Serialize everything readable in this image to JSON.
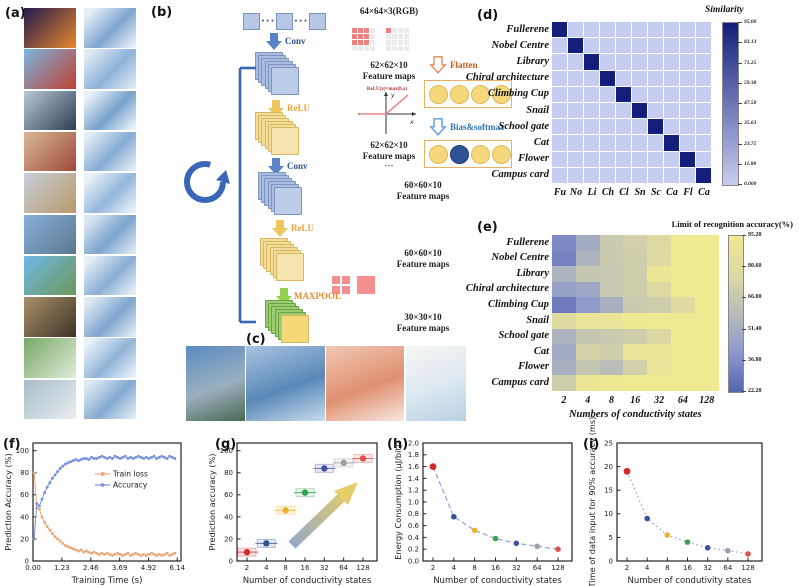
{
  "panels": {
    "a": {
      "label": "(a)",
      "items": [
        {
          "name": "fullerene",
          "photo": [
            "#221a4e",
            "#e8862a"
          ],
          "processed": [
            "#e6eff8",
            "#7fa6cf"
          ]
        },
        {
          "name": "nobel-centre",
          "photo": [
            "#7ab4e0",
            "#c04030"
          ],
          "processed": [
            "#dfeaf5",
            "#8db2d8"
          ]
        },
        {
          "name": "library",
          "photo": [
            "#b8c8d8",
            "#2e3e52"
          ],
          "processed": [
            "#e9f1f8",
            "#77a2cc"
          ]
        },
        {
          "name": "chiral-architecture",
          "photo": [
            "#d8b898",
            "#a04838"
          ],
          "processed": [
            "#e2ecf6",
            "#86abd2"
          ]
        },
        {
          "name": "climbing-cup",
          "photo": [
            "#c8d0dc",
            "#b89868"
          ],
          "processed": [
            "#eaf2f9",
            "#92b6da"
          ]
        },
        {
          "name": "snail",
          "photo": [
            "#88b0d8",
            "#5a7890"
          ],
          "processed": [
            "#dce8f4",
            "#7ca4cd"
          ]
        },
        {
          "name": "school-gate",
          "photo": [
            "#70b8e8",
            "#6a9858"
          ],
          "processed": [
            "#e7f0f8",
            "#89aed4"
          ]
        },
        {
          "name": "cat",
          "photo": [
            "#a89068",
            "#403428"
          ],
          "processed": [
            "#e0eaf4",
            "#7ea6ce"
          ]
        },
        {
          "name": "flower",
          "photo": [
            "#78a868",
            "#e0ecd8"
          ],
          "processed": [
            "#e8f1f9",
            "#90b4d8"
          ]
        },
        {
          "name": "campus-card",
          "photo": [
            "#a8bcc8",
            "#e8eef0"
          ],
          "processed": [
            "#dde9f3",
            "#84aad1"
          ]
        }
      ]
    },
    "b": {
      "label": "(b)",
      "dots": "···",
      "conv_label": "Conv",
      "relu_label": "ReLU",
      "maxpool_label": "MAXPOOL",
      "flatten_label": "Flatten",
      "bias_label": "Bias&softmax",
      "input_size": "64×64×3(RGB)",
      "fm62": "62×62×10",
      "fm60": "60×60×10",
      "fm30": "30×30×10",
      "feature_maps": "Feature maps",
      "relu_formula": "ReLU(x)=max(0,x)",
      "axis_x": "x",
      "axis_y": "y"
    },
    "c": {
      "label": "(c)",
      "tiles": [
        {
          "name": "snail-photo",
          "colors": [
            "#5a8ac0",
            "#9ab0c0",
            "#4a6850"
          ]
        },
        {
          "name": "feature-blue",
          "colors": [
            "#a8c4e0",
            "#5a88b8",
            "#c8dcec"
          ]
        },
        {
          "name": "feature-red",
          "colors": [
            "#f0c8b4",
            "#e09070",
            "#f8e8e0"
          ]
        },
        {
          "name": "feature-white",
          "colors": [
            "#f6f6f4",
            "#dce8f0",
            "#b8d0e4"
          ]
        }
      ]
    },
    "d": {
      "label": "(d)"
    },
    "e": {
      "label": "(e)"
    }
  },
  "chart_data": [
    {
      "id": "d",
      "type": "heatmap",
      "title": "",
      "rows": [
        "Fullerene",
        "Nobel Centre",
        "Library",
        "Chiral architecture",
        "Climbing Cup",
        "Snail",
        "School gate",
        "Cat",
        "Flower",
        "Campus card"
      ],
      "cols": [
        "Fu",
        "No",
        "Li",
        "Ch",
        "Cl",
        "Sn",
        "Sc",
        "Ca",
        "Fl",
        "Ca"
      ],
      "diag_value": 95,
      "offdiag_value": 8,
      "colors": {
        "low": "#c7cdf0",
        "high": "#141f7b"
      },
      "colorbar": {
        "title": "Similarity",
        "ticks": [
          "95.00",
          "83.13",
          "71.25",
          "59.38",
          "47.50",
          "35.63",
          "23.75",
          "11.88",
          "0.000"
        ]
      }
    },
    {
      "id": "e",
      "type": "heatmap",
      "rows": [
        "Fullerene",
        "Nobel Centre",
        "Library",
        "Chiral architecture",
        "Climbing Cup",
        "Snail",
        "School gate",
        "Cat",
        "Flower",
        "Campus card"
      ],
      "cols": [
        "2",
        "4",
        "8",
        "16",
        "32",
        "64",
        "128"
      ],
      "xlabel": "Numbers of conductivity states",
      "values": [
        [
          35,
          50,
          68,
          72,
          78,
          94,
          94
        ],
        [
          33,
          55,
          68,
          70,
          80,
          94,
          94
        ],
        [
          55,
          66,
          67,
          70,
          91,
          94,
          94
        ],
        [
          45,
          48,
          67,
          70,
          78,
          94,
          94
        ],
        [
          30,
          42,
          52,
          68,
          70,
          80,
          94
        ],
        [
          80,
          89,
          89,
          93,
          94,
          94,
          94
        ],
        [
          55,
          66,
          68,
          70,
          76,
          94,
          94
        ],
        [
          50,
          73,
          70,
          89,
          91,
          94,
          94
        ],
        [
          52,
          65,
          60,
          72,
          89,
          94,
          94
        ],
        [
          70,
          91,
          93,
          94,
          94,
          94,
          94
        ]
      ],
      "vmin": 22.2,
      "vmax": 95.2,
      "colormap": [
        "#5565b2",
        "#8c98cc",
        "#b8bcba",
        "#dcd8a4",
        "#f0ea90"
      ],
      "colorbar": {
        "title": "Limit of recognition accuracy(%)",
        "ticks": [
          "95.20",
          "80.60",
          "66.00",
          "51.40",
          "36.80",
          "22.20"
        ]
      }
    },
    {
      "id": "f",
      "type": "line",
      "panel_label": "(f)",
      "xlabel": "Training Time (s)",
      "ylabel": "Prediction Accuracy (%)",
      "xlim": [
        0,
        6.3
      ],
      "ylim": [
        0,
        107
      ],
      "xticks": [
        "0.00",
        "1.23",
        "2.46",
        "3.69",
        "4.92",
        "6.14"
      ],
      "yticks": [
        0,
        20,
        40,
        60,
        80,
        100
      ],
      "x_start": 0.05,
      "x_step": 0.1109,
      "legend": [
        "Train loss",
        "Accuracy"
      ],
      "series": [
        {
          "name": "Train loss",
          "color": "#e8a87c",
          "y": [
            80,
            48,
            47,
            40,
            35,
            31,
            28,
            25,
            22,
            20,
            18,
            16,
            14,
            13,
            12,
            11,
            10,
            9,
            10,
            8,
            9,
            8,
            7,
            8,
            7,
            6,
            7,
            6,
            7,
            6,
            5,
            6,
            7,
            6,
            5,
            6,
            7,
            5,
            6,
            7,
            6,
            5,
            6,
            5,
            6,
            7,
            6,
            5,
            6,
            5,
            6,
            7,
            5,
            6,
            7
          ]
        },
        {
          "name": "Accuracy",
          "color": "#7b93db",
          "y": [
            20,
            52,
            50,
            56,
            62,
            67,
            71,
            75,
            78,
            81,
            84,
            86,
            88,
            89,
            90,
            91,
            92,
            91,
            92,
            93,
            93,
            92,
            94,
            93,
            93,
            94,
            95,
            94,
            93,
            94,
            93,
            95,
            94,
            93,
            94,
            95,
            93,
            94,
            93,
            94,
            95,
            94,
            93,
            94,
            93,
            94,
            95,
            93,
            94,
            95,
            94,
            93,
            95,
            94,
            93
          ]
        }
      ]
    },
    {
      "id": "g",
      "type": "scatter",
      "panel_label": "(g)",
      "xlabel": "Number of conductivity states",
      "ylabel": "Prediction accuracy (%)",
      "xticks": [
        2,
        4,
        8,
        16,
        32,
        64,
        128
      ],
      "yticks": [
        0,
        20,
        40,
        60,
        80,
        100
      ],
      "ylim": [
        0,
        107
      ],
      "points": [
        {
          "x": 2,
          "y": 8,
          "color": "#d42a2a"
        },
        {
          "x": 4,
          "y": 16,
          "color": "#2f5597"
        },
        {
          "x": 8,
          "y": 46,
          "color": "#edb12c"
        },
        {
          "x": 16,
          "y": 62,
          "color": "#36a353"
        },
        {
          "x": 32,
          "y": 84,
          "color": "#44519e"
        },
        {
          "x": 64,
          "y": 89,
          "color": "#9aa0a6"
        },
        {
          "x": 128,
          "y": 93,
          "color": "#e05050"
        }
      ],
      "arrow_gradient": [
        "#96a8c8",
        "#e6cd6a"
      ]
    },
    {
      "id": "h",
      "type": "scatter-line",
      "panel_label": "(h)",
      "xlabel": "Number of conductivity states",
      "ylabel": "Energy Consumption (μJ/bit)",
      "xticks": [
        2,
        4,
        8,
        16,
        32,
        64,
        128
      ],
      "yticks": [
        "0.0",
        "0.2",
        "0.4",
        "0.6",
        "0.8",
        "1.0",
        "1.2",
        "1.4",
        "1.6",
        "1.8",
        "2.0"
      ],
      "ylim": [
        0,
        2.0
      ],
      "line_style": "dashed",
      "line_color": "#8f9fd8",
      "points": [
        {
          "x": 2,
          "y": 1.6,
          "color": "#d42a2a"
        },
        {
          "x": 4,
          "y": 0.75,
          "color": "#2f5597"
        },
        {
          "x": 8,
          "y": 0.52,
          "color": "#edb12c"
        },
        {
          "x": 16,
          "y": 0.38,
          "color": "#36a353"
        },
        {
          "x": 32,
          "y": 0.3,
          "color": "#44519e"
        },
        {
          "x": 64,
          "y": 0.25,
          "color": "#9aa0a6"
        },
        {
          "x": 128,
          "y": 0.2,
          "color": "#e05050"
        }
      ]
    },
    {
      "id": "i",
      "type": "scatter-line",
      "panel_label": "(i)",
      "xlabel": "Number of condutivity states",
      "ylabel": "Time of data input for 90% accuracy (ms)",
      "xticks": [
        2,
        4,
        8,
        16,
        32,
        64,
        128
      ],
      "yticks": [
        0,
        5,
        10,
        15,
        20,
        25
      ],
      "ylim": [
        0,
        25
      ],
      "line_style": "dotted",
      "line_color": "#8f9fd8",
      "points": [
        {
          "x": 2,
          "y": 19,
          "color": "#d42a2a"
        },
        {
          "x": 4,
          "y": 9,
          "color": "#2f5597"
        },
        {
          "x": 8,
          "y": 5.5,
          "color": "#edb12c"
        },
        {
          "x": 16,
          "y": 4,
          "color": "#36a353"
        },
        {
          "x": 32,
          "y": 2.8,
          "color": "#44519e"
        },
        {
          "x": 64,
          "y": 2.2,
          "color": "#9aa0a6"
        },
        {
          "x": 128,
          "y": 1.5,
          "color": "#e05050"
        }
      ]
    }
  ]
}
